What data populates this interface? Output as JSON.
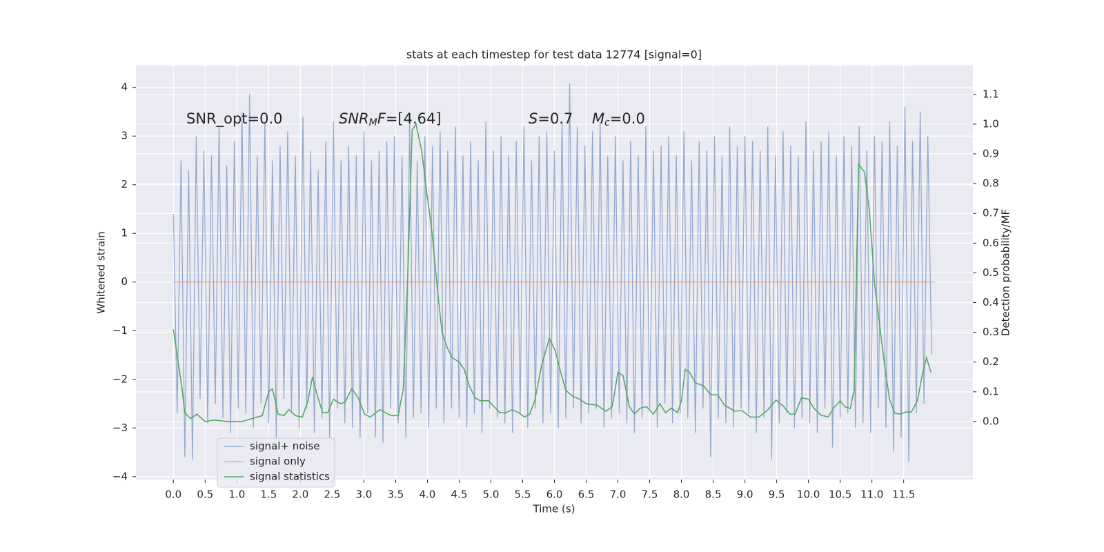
{
  "chart_data": {
    "type": "line",
    "title": "stats at each timestep for test data 12774 [signal=0]",
    "xlabel": "Time (s)",
    "ylabel": "Whitened strain",
    "y2label": "Detection probability/MF",
    "background": "#eaeaf2",
    "grid": true,
    "legend": "lower left",
    "xlim": [
      -0.59,
      12.59
    ],
    "ylim": [
      -4.06,
      4.45
    ],
    "y2lim": [
      -0.195,
      1.197
    ],
    "xticks": [
      {
        "value": 0,
        "label": "0.0"
      },
      0.5,
      {
        "value": 1,
        "label": "1.0"
      },
      1.5,
      {
        "value": 2,
        "label": "2.0"
      },
      2.5,
      {
        "value": 3,
        "label": "3.0"
      },
      3.5,
      {
        "value": 4,
        "label": "4.0"
      },
      4.5,
      {
        "value": 5,
        "label": "5.0"
      },
      5.5,
      {
        "value": 6,
        "label": "6.0"
      },
      6.5,
      {
        "value": 7,
        "label": "7.0"
      },
      7.5,
      {
        "value": 8,
        "label": "8.0"
      },
      8.5,
      {
        "value": 9,
        "label": "9.0"
      },
      9.5,
      {
        "value": 10,
        "label": "10.0"
      },
      10.5,
      {
        "value": 11,
        "label": "11.0"
      },
      11.5
    ],
    "yticks": [
      {
        "value": -4,
        "label": "−4"
      },
      {
        "value": -3,
        "label": "−3"
      },
      {
        "value": -2,
        "label": "−2"
      },
      {
        "value": -1,
        "label": "−1"
      },
      0,
      1,
      2,
      3,
      4
    ],
    "y2ticks": [
      {
        "value": 0,
        "label": "0.0"
      },
      0.1,
      0.2,
      0.3,
      0.4,
      0.5,
      0.6,
      0.7,
      0.8,
      0.9,
      {
        "value": 1,
        "label": "1.0"
      },
      1.1
    ],
    "annotations": [
      [
        {
          "text": "SNR_opt=0.0"
        }
      ],
      [
        {
          "text": "SNR",
          "italic": true
        },
        {
          "text": "M",
          "italic": true,
          "sub": true
        },
        {
          "text": "F",
          "italic": true
        },
        {
          "text": "=[4.64]"
        }
      ],
      [
        {
          "text": "S",
          "italic": true
        },
        {
          "text": "=0.7"
        }
      ],
      [
        {
          "text": "M",
          "italic": true
        },
        {
          "text": "c",
          "italic": true,
          "sub": true
        },
        {
          "text": "=0.0"
        }
      ]
    ],
    "series": [
      {
        "name": "signal+ noise",
        "color": "#4c72b0",
        "x": [
          0,
          0.06,
          0.12,
          0.18,
          0.24,
          0.3,
          0.36,
          0.42,
          0.48,
          0.54,
          0.6,
          0.66,
          0.72,
          0.78,
          0.84,
          0.9,
          0.96,
          1.02,
          1.08,
          1.14,
          1.2,
          1.26,
          1.32,
          1.38,
          1.44,
          1.5,
          1.56,
          1.62,
          1.68,
          1.74,
          1.8,
          1.86,
          1.92,
          1.98,
          2.04,
          2.1,
          2.16,
          2.22,
          2.28,
          2.34,
          2.4,
          2.46,
          2.52,
          2.58,
          2.64,
          2.7,
          2.76,
          2.82,
          2.88,
          2.94,
          3,
          3.06,
          3.12,
          3.18,
          3.24,
          3.3,
          3.36,
          3.42,
          3.48,
          3.54,
          3.6,
          3.66,
          3.72,
          3.78,
          3.84,
          3.9,
          3.96,
          4.02,
          4.08,
          4.14,
          4.2,
          4.26,
          4.32,
          4.38,
          4.44,
          4.5,
          4.56,
          4.62,
          4.68,
          4.74,
          4.8,
          4.86,
          4.92,
          4.98,
          5.04,
          5.1,
          5.16,
          5.22,
          5.28,
          5.34,
          5.4,
          5.46,
          5.52,
          5.58,
          5.64,
          5.7,
          5.76,
          5.82,
          5.88,
          5.94,
          6,
          6.06,
          6.12,
          6.18,
          6.24,
          6.3,
          6.36,
          6.42,
          6.48,
          6.54,
          6.6,
          6.66,
          6.72,
          6.78,
          6.84,
          6.9,
          6.96,
          7.02,
          7.08,
          7.14,
          7.2,
          7.26,
          7.32,
          7.38,
          7.44,
          7.5,
          7.56,
          7.62,
          7.68,
          7.74,
          7.8,
          7.86,
          7.92,
          7.98,
          8.04,
          8.1,
          8.16,
          8.22,
          8.28,
          8.34,
          8.4,
          8.46,
          8.52,
          8.58,
          8.64,
          8.7,
          8.76,
          8.82,
          8.88,
          8.94,
          9,
          9.06,
          9.12,
          9.18,
          9.24,
          9.3,
          9.36,
          9.42,
          9.48,
          9.54,
          9.6,
          9.66,
          9.72,
          9.78,
          9.84,
          9.9,
          9.96,
          10.02,
          10.08,
          10.14,
          10.2,
          10.26,
          10.32,
          10.38,
          10.44,
          10.5,
          10.56,
          10.62,
          10.68,
          10.74,
          10.8,
          10.86,
          10.92,
          10.98,
          11.04,
          11.1,
          11.16,
          11.22,
          11.28,
          11.34,
          11.4,
          11.46,
          11.52,
          11.58,
          11.64,
          11.7,
          11.76,
          11.82,
          11.88,
          11.94
        ],
        "values": [
          1.4,
          -2.7,
          2.5,
          -3.6,
          2.3,
          -3.65,
          3.0,
          -2.4,
          2.7,
          -2.9,
          2.6,
          -2.5,
          3.2,
          -2.8,
          2.4,
          -3.1,
          2.9,
          -2.6,
          3.5,
          -2.7,
          3.87,
          -3.0,
          2.6,
          -2.5,
          3.3,
          -2.9,
          2.5,
          -3.2,
          2.8,
          -2.4,
          3.1,
          -2.7,
          2.6,
          -3.0,
          3.4,
          -2.6,
          2.7,
          -3.1,
          2.3,
          -2.8,
          2.9,
          -3.2,
          3.3,
          -2.6,
          2.5,
          -2.9,
          2.8,
          -3.0,
          2.6,
          -3.2,
          3.1,
          -2.7,
          2.5,
          -3.2,
          2.7,
          -3.3,
          2.9,
          -2.6,
          3.0,
          -2.9,
          2.6,
          -3.2,
          3.3,
          -2.8,
          2.5,
          -2.7,
          3.0,
          -3.0,
          2.8,
          -2.6,
          3.1,
          -2.9,
          2.7,
          -2.6,
          3.2,
          -2.8,
          2.6,
          -3.0,
          2.9,
          -2.7,
          2.5,
          -3.1,
          3.3,
          -2.6,
          2.7,
          -2.8,
          3.0,
          -2.9,
          2.6,
          -3.1,
          2.9,
          -2.7,
          3.2,
          -3.0,
          2.5,
          -2.6,
          3.0,
          -2.9,
          3.1,
          -2.7,
          2.7,
          -3.0,
          3.3,
          -2.8,
          4.08,
          -2.6,
          3.2,
          -2.9,
          2.8,
          -2.7,
          3.1,
          -2.6,
          3.3,
          -3.0,
          2.6,
          -2.8,
          3.0,
          -2.7,
          2.5,
          -2.9,
          2.9,
          -3.1,
          2.6,
          -2.8,
          3.2,
          -2.6,
          2.7,
          -3.0,
          2.8,
          -2.5,
          3.0,
          -2.9,
          2.6,
          -2.7,
          3.1,
          -2.8,
          2.5,
          -3.1,
          2.9,
          -2.6,
          2.7,
          -3.6,
          3.0,
          -2.8,
          2.6,
          -2.9,
          3.2,
          -3.0,
          2.8,
          -2.6,
          3.0,
          -2.7,
          2.9,
          -3.1,
          2.7,
          -2.8,
          3.2,
          -3.65,
          2.6,
          -2.9,
          3.1,
          -2.7,
          2.8,
          -3.0,
          2.6,
          -2.8,
          3.3,
          -2.9,
          2.7,
          -3.1,
          2.9,
          -2.6,
          3.1,
          -3.4,
          2.6,
          -2.8,
          3.0,
          -2.7,
          2.8,
          -3.0,
          3.2,
          -2.9,
          2.7,
          -3.1,
          3.0,
          -2.6,
          2.9,
          -3.0,
          3.3,
          -3.5,
          2.8,
          -3.2,
          3.6,
          -3.7,
          2.9,
          -2.7,
          3.5,
          -2.5,
          3.0,
          -1.5
        ]
      },
      {
        "name": "signal only",
        "color": "#dd8452",
        "x": [
          0,
          11.99
        ],
        "values": [
          0,
          0
        ]
      },
      {
        "name": "signal statistics",
        "color": "#55a868",
        "axis": "y2",
        "x": [
          0,
          0.13,
          0.18,
          0.27,
          0.37,
          0.5,
          0.64,
          0.86,
          1.08,
          1.24,
          1.4,
          1.5,
          1.56,
          1.65,
          1.74,
          1.82,
          1.92,
          2.03,
          2.12,
          2.19,
          2.27,
          2.35,
          2.43,
          2.52,
          2.63,
          2.7,
          2.81,
          2.91,
          3.01,
          3.1,
          3.25,
          3.43,
          3.54,
          3.62,
          3.69,
          3.76,
          3.82,
          3.91,
          3.99,
          4.07,
          4.16,
          4.23,
          4.31,
          4.39,
          4.5,
          4.58,
          4.66,
          4.75,
          4.83,
          4.96,
          5.05,
          5.14,
          5.24,
          5.33,
          5.44,
          5.53,
          5.61,
          5.69,
          5.8,
          5.92,
          6.01,
          6.1,
          6.18,
          6.29,
          6.4,
          6.5,
          6.67,
          6.81,
          6.91,
          7.0,
          7.08,
          7.18,
          7.26,
          7.35,
          7.45,
          7.56,
          7.66,
          7.75,
          7.84,
          7.94,
          8.0,
          8.06,
          8.13,
          8.22,
          8.35,
          8.46,
          8.57,
          8.68,
          8.84,
          8.95,
          9.09,
          9.22,
          9.35,
          9.49,
          9.6,
          9.71,
          9.79,
          9.89,
          10.0,
          10.09,
          10.2,
          10.31,
          10.41,
          10.5,
          10.58,
          10.66,
          10.72,
          10.79,
          10.88,
          10.96,
          11.04,
          11.12,
          11.2,
          11.28,
          11.36,
          11.45,
          11.53,
          11.62,
          11.72,
          11.79,
          11.86,
          11.93
        ],
        "values": [
          0.31,
          0.12,
          0.03,
          0.01,
          0.025,
          0.0,
          0.005,
          0.0,
          0.0,
          0.01,
          0.02,
          0.1,
          0.11,
          0.025,
          0.02,
          0.04,
          0.02,
          0.015,
          0.07,
          0.15,
          0.085,
          0.03,
          0.03,
          0.075,
          0.06,
          0.065,
          0.11,
          0.08,
          0.025,
          0.015,
          0.04,
          0.02,
          0.02,
          0.11,
          0.49,
          0.98,
          1.0,
          0.91,
          0.77,
          0.64,
          0.44,
          0.3,
          0.25,
          0.215,
          0.2,
          0.175,
          0.12,
          0.08,
          0.07,
          0.07,
          0.05,
          0.03,
          0.03,
          0.04,
          0.03,
          0.015,
          0.025,
          0.07,
          0.19,
          0.28,
          0.24,
          0.165,
          0.105,
          0.085,
          0.075,
          0.06,
          0.055,
          0.035,
          0.05,
          0.165,
          0.155,
          0.05,
          0.025,
          0.045,
          0.05,
          0.025,
          0.06,
          0.03,
          0.045,
          0.03,
          0.07,
          0.175,
          0.165,
          0.13,
          0.12,
          0.09,
          0.09,
          0.055,
          0.035,
          0.037,
          0.015,
          0.015,
          0.037,
          0.072,
          0.053,
          0.025,
          0.025,
          0.08,
          0.075,
          0.044,
          0.021,
          0.016,
          0.049,
          0.07,
          0.049,
          0.044,
          0.107,
          0.865,
          0.84,
          0.71,
          0.466,
          0.327,
          0.188,
          0.072,
          0.028,
          0.025,
          0.032,
          0.032,
          0.072,
          0.155,
          0.215,
          0.165
        ]
      }
    ]
  }
}
